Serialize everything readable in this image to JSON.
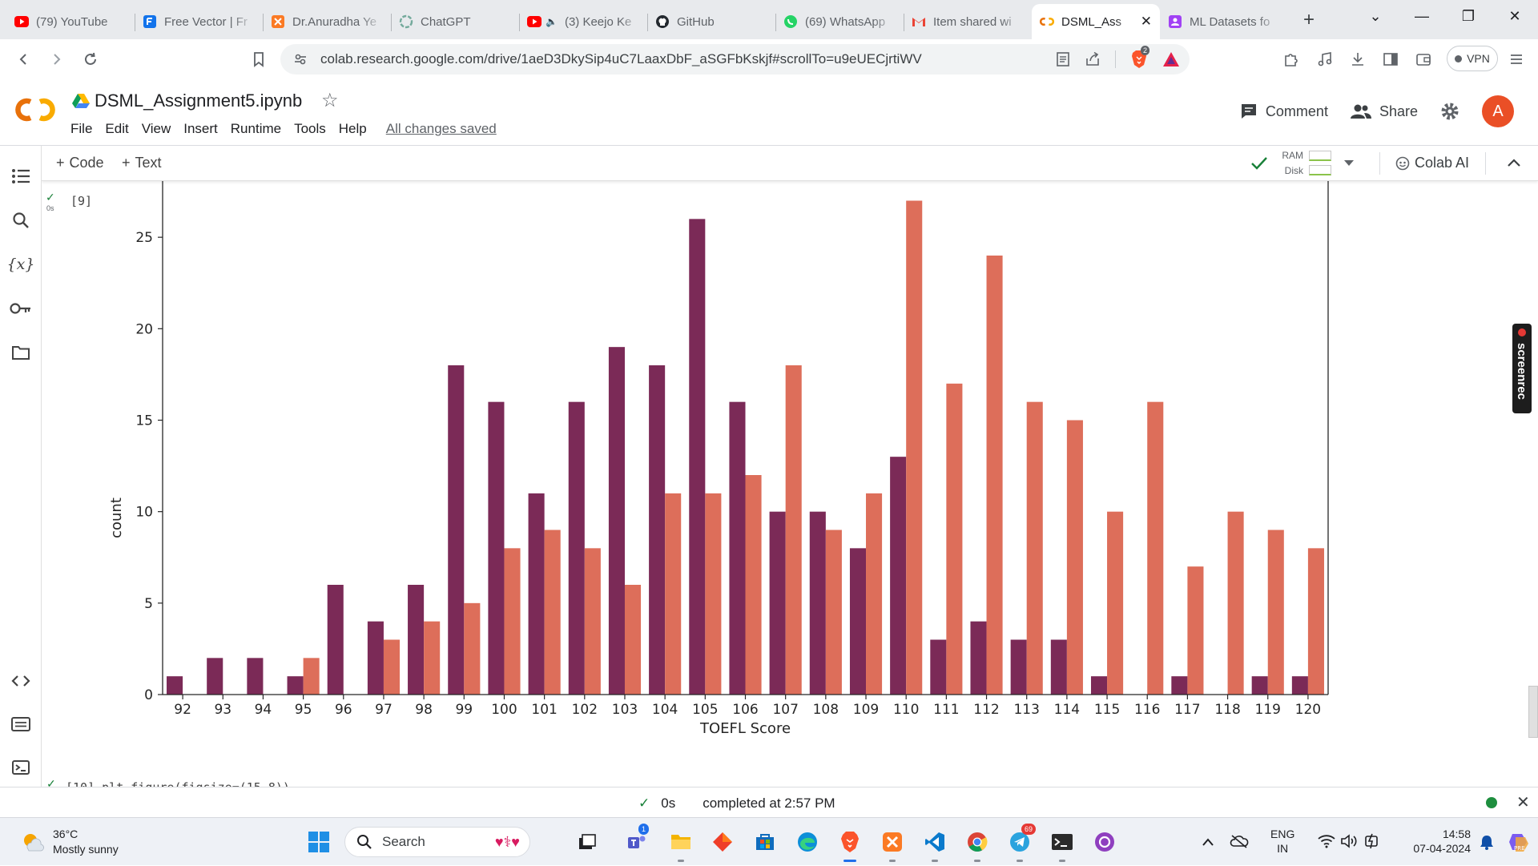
{
  "browser": {
    "tabs": [
      {
        "title": "(79) YouTube",
        "icon": "youtube-icon",
        "color": "#ff0000"
      },
      {
        "title": "Free Vector | Fr",
        "icon": "freepik-icon",
        "color": "#1273eb"
      },
      {
        "title": "Dr.Anuradha Ye",
        "icon": "xampp-icon",
        "color": "#fb7a24"
      },
      {
        "title": "ChatGPT",
        "icon": "chatgpt-icon",
        "color": "#74aa9c"
      },
      {
        "title": "(3) Keejo Ke",
        "icon": "youtube-icon",
        "color": "#ff0000"
      },
      {
        "title": "GitHub",
        "icon": "github-icon",
        "color": "#24292f"
      },
      {
        "title": "(69) WhatsApp",
        "icon": "whatsapp-icon",
        "color": "#25d366"
      },
      {
        "title": "Item shared wi",
        "icon": "gmail-icon",
        "color": "#ea4335"
      },
      {
        "title": "DSML_Ass",
        "icon": "colab-icon",
        "color": "#f9ab00",
        "active": true
      },
      {
        "title": "ML Datasets fo",
        "icon": "classroom-icon",
        "color": "#a142f4"
      }
    ],
    "url": "colab.research.google.com/drive/1aeD3DkySip4uC7LaaxDbF_aSGFbKskjf#scrollTo=u9eUECjrtiWV",
    "vpn_label": "VPN",
    "brave_badge": "2"
  },
  "colab": {
    "notebook_title": "DSML_Assignment5.ipynb",
    "menu": [
      "File",
      "Edit",
      "View",
      "Insert",
      "Runtime",
      "Tools",
      "Help"
    ],
    "save_status": "All changes saved",
    "comment_label": "Comment",
    "share_label": "Share",
    "avatar_letter": "A",
    "add_code_label": "Code",
    "add_text_label": "Text",
    "ram_label": "RAM",
    "disk_label": "Disk",
    "colab_ai_label": "Colab AI",
    "cell": {
      "exec_count": "[9]",
      "run_time": "0s"
    },
    "next_cell_code": "[10] plt.figure(figsize=(15,8))",
    "status_time": "0s",
    "status_text": "completed at 2:57 PM",
    "screenrec_label": "screenrec"
  },
  "chart_data": {
    "type": "bar",
    "title": "",
    "xlabel": "TOEFL Score",
    "ylabel": "count",
    "categories": [
      "92",
      "93",
      "94",
      "95",
      "96",
      "97",
      "98",
      "99",
      "100",
      "101",
      "102",
      "103",
      "104",
      "105",
      "106",
      "107",
      "108",
      "109",
      "110",
      "111",
      "112",
      "113",
      "114",
      "115",
      "116",
      "117",
      "118",
      "119",
      "120"
    ],
    "series": [
      {
        "color": "#7b2a57",
        "values": [
          1,
          2,
          2,
          1,
          6,
          4,
          6,
          18,
          16,
          11,
          16,
          19,
          18,
          26,
          16,
          10,
          10,
          8,
          13,
          3,
          4,
          3,
          3,
          1,
          0,
          1,
          0,
          1,
          1
        ]
      },
      {
        "color": "#dd6e5a",
        "values": [
          0,
          0,
          0,
          2,
          0,
          3,
          4,
          5,
          8,
          9,
          8,
          6,
          11,
          11,
          12,
          18,
          9,
          11,
          27,
          17,
          24,
          16,
          15,
          10,
          16,
          7,
          10,
          9,
          8
        ]
      }
    ],
    "y_ticks": [
      0,
      5,
      10,
      15,
      20,
      25
    ],
    "ylim_visible": [
      0,
      27
    ]
  },
  "taskbar": {
    "weather_temp": "36°C",
    "weather_desc": "Mostly sunny",
    "search_placeholder": "Search",
    "lang_top": "ENG",
    "lang_bottom": "IN",
    "clock_time": "14:58",
    "clock_date": "07-04-2024",
    "teams_badge": "1",
    "telegram_badge": "69"
  }
}
